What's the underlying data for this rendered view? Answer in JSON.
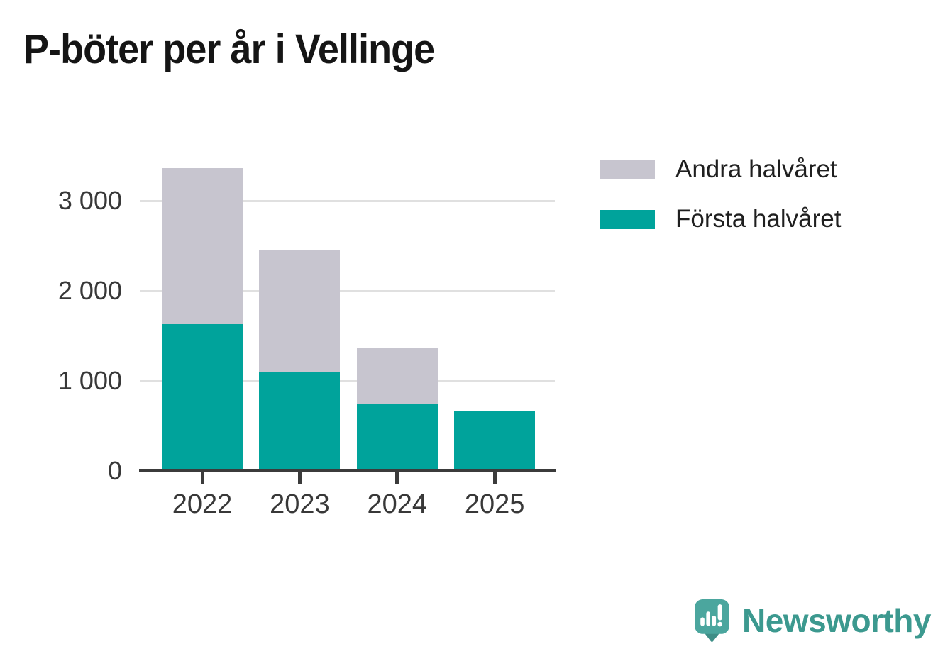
{
  "title": "P-böter per år i Vellinge",
  "chart_data": {
    "type": "bar",
    "stacked": true,
    "title": "P-böter per år i Vellinge",
    "xlabel": "",
    "ylabel": "",
    "categories": [
      "2022",
      "2023",
      "2024",
      "2025"
    ],
    "series": [
      {
        "name": "Första halvåret",
        "color": "#00a39b",
        "values": [
          1610,
          1080,
          720,
          640
        ]
      },
      {
        "name": "Andra halvåret",
        "color": "#c7c5cf",
        "values": [
          1730,
          1350,
          630,
          0
        ]
      }
    ],
    "totals": [
      3340,
      2430,
      1350,
      640
    ],
    "ylim": [
      0,
      3500
    ],
    "yticks": [
      {
        "value": 0,
        "label": "0"
      },
      {
        "value": 1000,
        "label": "1 000"
      },
      {
        "value": 2000,
        "label": "2 000"
      },
      {
        "value": 3000,
        "label": "3 000"
      }
    ],
    "grid": "horizontal-lines-at-1000-2000-3000",
    "legend_position": "top-right"
  },
  "legend": {
    "items": [
      {
        "label": "Andra halvåret",
        "color": "#c7c5cf"
      },
      {
        "label": "Första halvåret",
        "color": "#00a39b"
      }
    ]
  },
  "branding": {
    "name": "Newsworthy",
    "icon": "newsworthy-speech-bubble-chart-icon",
    "icon_color": "#4ba69e",
    "icon_shadow_color": "#3f8e87",
    "text_color": "#3c998f"
  },
  "colors": {
    "background": "#ffffff",
    "axis_line": "#3b3b3b",
    "gridline": "#e0e0e0",
    "axis_text": "#383838",
    "title_text": "#151515"
  }
}
